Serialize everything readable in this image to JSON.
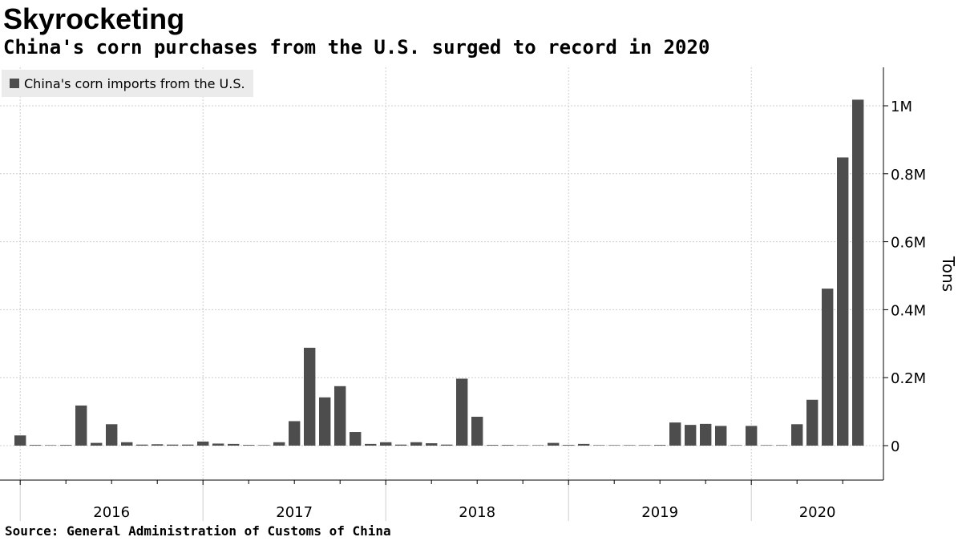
{
  "title": "Skyrocketing",
  "subtitle": "China's corn purchases from the U.S. surged to record in 2020",
  "source": "Source:  General Administration of Customs of China",
  "colors": {
    "bar": "#4d4d4d",
    "grid": "#cccccc",
    "axis": "#000000",
    "legend_bg": "#ebebeb"
  },
  "chart_data": {
    "type": "bar",
    "title": "",
    "xlabel": "",
    "ylabel": "Tons",
    "ylim": [
      0,
      1100000
    ],
    "yticks": [
      0,
      200000,
      400000,
      600000,
      800000,
      1000000
    ],
    "ytick_labels": [
      "0",
      "0.2M",
      "0.4M",
      "0.6M",
      "0.8M",
      "1M"
    ],
    "xtick_labels": [
      "2016",
      "2017",
      "2018",
      "2019",
      "2020"
    ],
    "legend": "top-left",
    "grid": true,
    "categories": [
      "2016-01",
      "2016-02",
      "2016-03",
      "2016-04",
      "2016-05",
      "2016-06",
      "2016-07",
      "2016-08",
      "2016-09",
      "2016-10",
      "2016-11",
      "2016-12",
      "2017-01",
      "2017-02",
      "2017-03",
      "2017-04",
      "2017-05",
      "2017-06",
      "2017-07",
      "2017-08",
      "2017-09",
      "2017-10",
      "2017-11",
      "2017-12",
      "2018-01",
      "2018-02",
      "2018-03",
      "2018-04",
      "2018-05",
      "2018-06",
      "2018-07",
      "2018-08",
      "2018-09",
      "2018-10",
      "2018-11",
      "2018-12",
      "2019-01",
      "2019-02",
      "2019-03",
      "2019-04",
      "2019-05",
      "2019-06",
      "2019-07",
      "2019-08",
      "2019-09",
      "2019-10",
      "2019-11",
      "2019-12",
      "2020-01",
      "2020-02",
      "2020-03",
      "2020-04",
      "2020-05",
      "2020-06",
      "2020-07",
      "2020-08"
    ],
    "series": [
      {
        "name": "China's corn imports from the U.S.",
        "values": [
          30000,
          2000,
          1000,
          2000,
          118000,
          8000,
          63000,
          10000,
          3000,
          4000,
          3000,
          3000,
          12000,
          6000,
          5000,
          2000,
          1000,
          10000,
          72000,
          288000,
          142000,
          175000,
          40000,
          5000,
          10000,
          3000,
          10000,
          7000,
          3000,
          197000,
          85000,
          2000,
          2000,
          1000,
          1000,
          8000,
          2000,
          5000,
          1000,
          1000,
          1000,
          1000,
          2000,
          68000,
          61000,
          64000,
          58000,
          1000,
          58000,
          1000,
          1000,
          63000,
          135000,
          462000,
          848000,
          1018000
        ]
      }
    ]
  }
}
